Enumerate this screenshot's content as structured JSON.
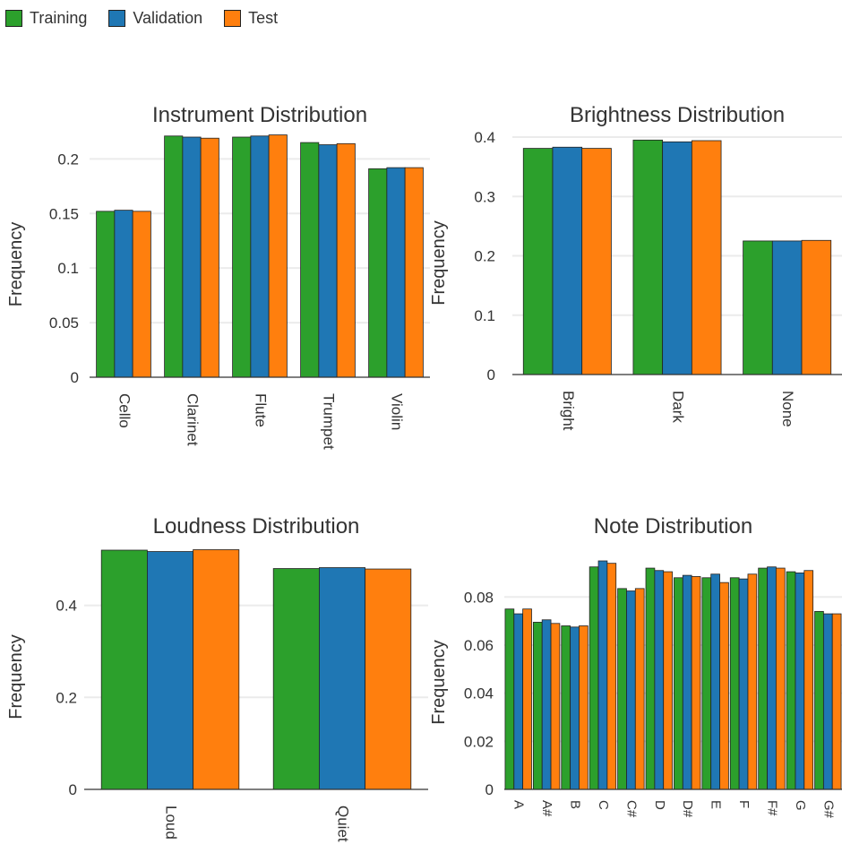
{
  "legend": {
    "items": [
      {
        "label": "Training",
        "color": "#2ca02c"
      },
      {
        "label": "Validation",
        "color": "#1f77b4"
      },
      {
        "label": "Test",
        "color": "#ff7f0e"
      }
    ]
  },
  "chart_data": [
    {
      "type": "bar",
      "title": "Instrument Distribution",
      "ylabel": "Frequency",
      "categories": [
        "Cello",
        "Clarinet",
        "Flute",
        "Trumpet",
        "Violin"
      ],
      "ylim": [
        0,
        0.22
      ],
      "yticks": [
        0,
        0.05,
        0.1,
        0.15,
        0.2
      ],
      "ytick_labels": [
        "0",
        "0.05",
        "0.1",
        "0.15",
        "0.2"
      ],
      "grid": true,
      "legend": "top-left",
      "series": [
        {
          "name": "Training",
          "values": [
            0.152,
            0.221,
            0.22,
            0.215,
            0.191
          ]
        },
        {
          "name": "Validation",
          "values": [
            0.153,
            0.22,
            0.221,
            0.213,
            0.192
          ]
        },
        {
          "name": "Test",
          "values": [
            0.152,
            0.219,
            0.222,
            0.214,
            0.192
          ]
        }
      ]
    },
    {
      "type": "bar",
      "title": "Brightness Distribution",
      "ylabel": "Frequency",
      "categories": [
        "Bright",
        "Dark",
        "None"
      ],
      "ylim": [
        0,
        0.4
      ],
      "yticks": [
        0,
        0.1,
        0.2,
        0.3,
        0.4
      ],
      "ytick_labels": [
        "0",
        "0.1",
        "0.2",
        "0.3",
        "0.4"
      ],
      "grid": true,
      "series": [
        {
          "name": "Training",
          "values": [
            0.381,
            0.395,
            0.225
          ]
        },
        {
          "name": "Validation",
          "values": [
            0.383,
            0.392,
            0.225
          ]
        },
        {
          "name": "Test",
          "values": [
            0.381,
            0.394,
            0.226
          ]
        }
      ]
    },
    {
      "type": "bar",
      "title": "Loudness Distribution",
      "ylabel": "Frequency",
      "categories": [
        "Loud",
        "Quiet"
      ],
      "ylim": [
        0,
        0.52
      ],
      "yticks": [
        0,
        0.2,
        0.4
      ],
      "ytick_labels": [
        "0",
        "0.2",
        "0.4"
      ],
      "grid": true,
      "series": [
        {
          "name": "Training",
          "values": [
            0.52,
            0.48
          ]
        },
        {
          "name": "Validation",
          "values": [
            0.517,
            0.482
          ]
        },
        {
          "name": "Test",
          "values": [
            0.521,
            0.479
          ]
        }
      ]
    },
    {
      "type": "bar",
      "title": "Note Distribution",
      "ylabel": "Frequency",
      "categories": [
        "A",
        "A#",
        "B",
        "C",
        "C#",
        "D",
        "D#",
        "E",
        "F",
        "F#",
        "G",
        "G#"
      ],
      "ylim": [
        0,
        0.095
      ],
      "yticks": [
        0,
        0.02,
        0.04,
        0.06,
        0.08
      ],
      "ytick_labels": [
        "0",
        "0.02",
        "0.04",
        "0.06",
        "0.08"
      ],
      "grid": true,
      "series": [
        {
          "name": "Training",
          "values": [
            0.075,
            0.0695,
            0.068,
            0.0925,
            0.0835,
            0.092,
            0.088,
            0.088,
            0.088,
            0.092,
            0.0905,
            0.074
          ]
        },
        {
          "name": "Validation",
          "values": [
            0.073,
            0.0705,
            0.0675,
            0.095,
            0.0825,
            0.091,
            0.089,
            0.0895,
            0.0875,
            0.0925,
            0.09,
            0.073
          ]
        },
        {
          "name": "Test",
          "values": [
            0.075,
            0.069,
            0.068,
            0.094,
            0.0835,
            0.0905,
            0.0885,
            0.086,
            0.0895,
            0.092,
            0.091,
            0.073
          ]
        }
      ]
    }
  ]
}
